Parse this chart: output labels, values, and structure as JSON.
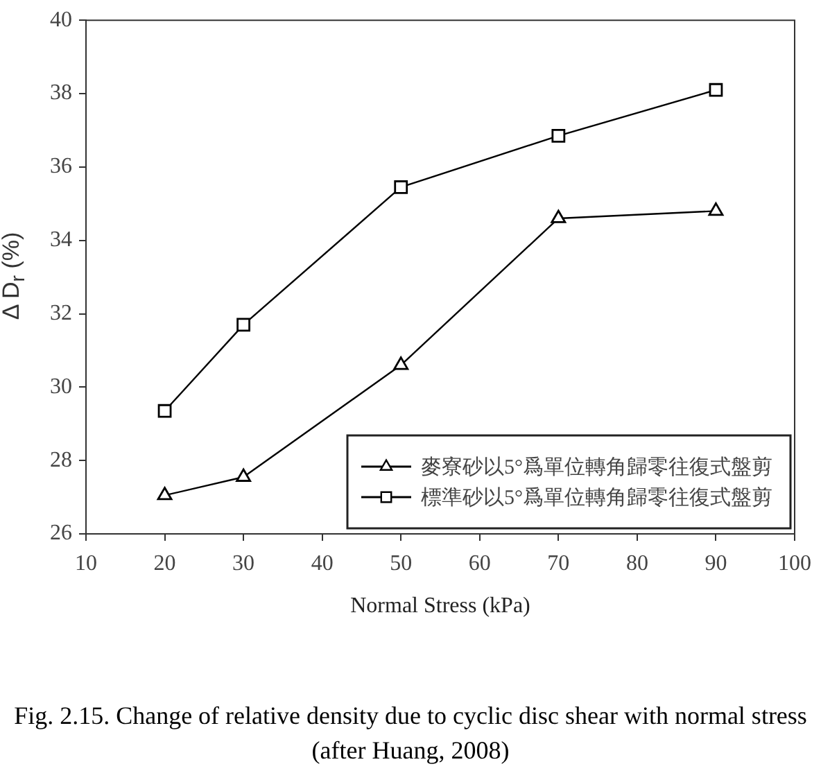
{
  "chart_data": {
    "type": "line",
    "xlabel": "Normal Stress (kPa)",
    "ylabel": "Δ D$_{r}$ (%)",
    "annotations": [
      "Fig. 2.15. Change of relative density due to cyclic disc shear with normal stress (after Huang, 2008)"
    ],
    "x": [
      20,
      30,
      50,
      70,
      90
    ],
    "xlim": [
      10,
      100
    ],
    "xticks": [
      10,
      20,
      30,
      40,
      50,
      60,
      70,
      80,
      90,
      100
    ],
    "ylim": [
      26,
      40
    ],
    "yticks": [
      26,
      28,
      30,
      32,
      34,
      36,
      38,
      40
    ],
    "series": [
      {
        "name": "麥寮砂以5°爲單位轉角歸零往復式盤剪",
        "color": "#000000",
        "marker": "triangle",
        "values": [
          27.05,
          27.55,
          30.6,
          34.6,
          34.8
        ]
      },
      {
        "name": "標準砂以5°爲單位轉角歸零往復式盤剪",
        "color": "#000000",
        "marker": "square",
        "values": [
          29.35,
          31.7,
          35.45,
          36.85,
          38.1
        ]
      }
    ],
    "legend": "bottom right",
    "line_style": "solid"
  }
}
